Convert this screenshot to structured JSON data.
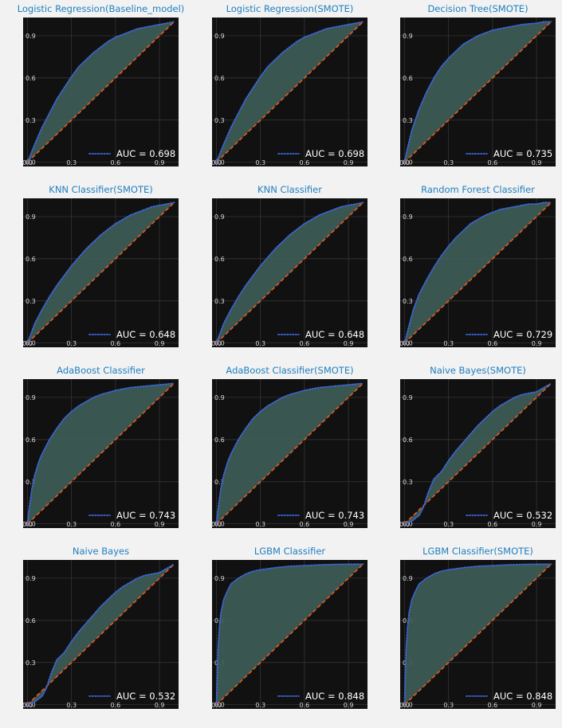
{
  "chart_data": [
    {
      "type": "line",
      "title": "Logistic Regression(Baseline_model)",
      "auc_label": "AUC = 0.698",
      "auc": 0.698,
      "xlim": [
        -0.03,
        1.03
      ],
      "ylim": [
        -0.03,
        1.03
      ],
      "xticks": [
        "0.0",
        "0.3",
        "0.6",
        "0.9"
      ],
      "yticks": [
        "0.0",
        "0.3",
        "0.6",
        "0.9"
      ],
      "roc": {
        "x": [
          0,
          0.05,
          0.1,
          0.15,
          0.2,
          0.25,
          0.3,
          0.35,
          0.4,
          0.45,
          0.5,
          0.55,
          0.6,
          0.65,
          0.7,
          0.75,
          0.8,
          0.85,
          0.9,
          0.95,
          1.0
        ],
        "y": [
          0,
          0.13,
          0.25,
          0.35,
          0.45,
          0.53,
          0.61,
          0.68,
          0.73,
          0.78,
          0.82,
          0.86,
          0.89,
          0.91,
          0.93,
          0.95,
          0.96,
          0.97,
          0.98,
          0.99,
          1.0
        ]
      },
      "diagonal": {
        "x": [
          0,
          1
        ],
        "y": [
          0,
          1
        ]
      },
      "legend": "lower right",
      "grid": true
    },
    {
      "type": "line",
      "title": "Logistic Regression(SMOTE)",
      "auc_label": "AUC = 0.698",
      "auc": 0.698,
      "xlim": [
        -0.03,
        1.03
      ],
      "ylim": [
        -0.03,
        1.03
      ],
      "xticks": [
        "0.0",
        "0.3",
        "0.6",
        "0.9"
      ],
      "yticks": [
        "0.0",
        "0.3",
        "0.6",
        "0.9"
      ],
      "roc": {
        "x": [
          0,
          0.05,
          0.1,
          0.15,
          0.2,
          0.25,
          0.3,
          0.35,
          0.4,
          0.45,
          0.5,
          0.55,
          0.6,
          0.65,
          0.7,
          0.75,
          0.8,
          0.85,
          0.9,
          0.95,
          1.0
        ],
        "y": [
          0,
          0.13,
          0.25,
          0.35,
          0.45,
          0.53,
          0.61,
          0.68,
          0.73,
          0.78,
          0.82,
          0.86,
          0.89,
          0.91,
          0.93,
          0.95,
          0.96,
          0.97,
          0.98,
          0.99,
          1.0
        ]
      },
      "diagonal": {
        "x": [
          0,
          1
        ],
        "y": [
          0,
          1
        ]
      },
      "legend": "lower right",
      "grid": true
    },
    {
      "type": "line",
      "title": "Decision Tree(SMOTE)",
      "auc_label": "AUC = 0.735",
      "auc": 0.735,
      "xlim": [
        -0.03,
        1.03
      ],
      "ylim": [
        -0.03,
        1.03
      ],
      "xticks": [
        "0.0",
        "0.3",
        "0.6",
        "0.9"
      ],
      "yticks": [
        "0.0",
        "0.3",
        "0.6",
        "0.9"
      ],
      "roc": {
        "x": [
          0,
          0.02,
          0.05,
          0.1,
          0.15,
          0.2,
          0.25,
          0.3,
          0.35,
          0.4,
          0.45,
          0.5,
          0.55,
          0.6,
          0.65,
          0.7,
          0.75,
          0.8,
          0.85,
          0.9,
          0.95,
          1.0
        ],
        "y": [
          0,
          0.1,
          0.23,
          0.38,
          0.5,
          0.6,
          0.68,
          0.74,
          0.79,
          0.84,
          0.87,
          0.9,
          0.92,
          0.94,
          0.95,
          0.96,
          0.97,
          0.98,
          0.985,
          0.99,
          1.0,
          1.0
        ]
      },
      "diagonal": {
        "x": [
          0,
          1
        ],
        "y": [
          0,
          1
        ]
      },
      "legend": "lower right",
      "grid": true
    },
    {
      "type": "line",
      "title": "KNN Classifier(SMOTE)",
      "auc_label": "AUC = 0.648",
      "auc": 0.648,
      "xlim": [
        -0.03,
        1.03
      ],
      "ylim": [
        -0.03,
        1.03
      ],
      "xticks": [
        "0.0",
        "0.3",
        "0.6",
        "0.9"
      ],
      "yticks": [
        "0.0",
        "0.3",
        "0.6",
        "0.9"
      ],
      "roc": {
        "x": [
          0,
          0.05,
          0.1,
          0.15,
          0.2,
          0.25,
          0.3,
          0.35,
          0.4,
          0.45,
          0.5,
          0.55,
          0.6,
          0.65,
          0.7,
          0.75,
          0.8,
          0.85,
          0.9,
          0.95,
          1.0
        ],
        "y": [
          0,
          0.14,
          0.24,
          0.33,
          0.41,
          0.48,
          0.55,
          0.61,
          0.67,
          0.72,
          0.77,
          0.81,
          0.85,
          0.88,
          0.91,
          0.93,
          0.95,
          0.97,
          0.98,
          0.99,
          1.0
        ]
      },
      "diagonal": {
        "x": [
          0,
          1
        ],
        "y": [
          0,
          1
        ]
      },
      "legend": "lower right",
      "grid": true
    },
    {
      "type": "line",
      "title": "KNN Classifier",
      "auc_label": "AUC = 0.648",
      "auc": 0.648,
      "xlim": [
        -0.03,
        1.03
      ],
      "ylim": [
        -0.03,
        1.03
      ],
      "xticks": [
        "0.0",
        "0.3",
        "0.6",
        "0.9"
      ],
      "yticks": [
        "0.0",
        "0.3",
        "0.6",
        "0.9"
      ],
      "roc": {
        "x": [
          0,
          0.05,
          0.1,
          0.15,
          0.2,
          0.25,
          0.3,
          0.35,
          0.4,
          0.45,
          0.5,
          0.55,
          0.6,
          0.65,
          0.7,
          0.75,
          0.8,
          0.85,
          0.9,
          0.95,
          1.0
        ],
        "y": [
          0,
          0.14,
          0.24,
          0.33,
          0.41,
          0.48,
          0.55,
          0.61,
          0.67,
          0.72,
          0.77,
          0.81,
          0.85,
          0.88,
          0.91,
          0.93,
          0.95,
          0.97,
          0.98,
          0.99,
          1.0
        ]
      },
      "diagonal": {
        "x": [
          0,
          1
        ],
        "y": [
          0,
          1
        ]
      },
      "legend": "lower right",
      "grid": true
    },
    {
      "type": "line",
      "title": "Random Forest Classifier",
      "auc_label": "AUC = 0.729",
      "auc": 0.729,
      "xlim": [
        -0.03,
        1.03
      ],
      "ylim": [
        -0.03,
        1.03
      ],
      "xticks": [
        "0.0",
        "0.3",
        "0.6",
        "0.9"
      ],
      "yticks": [
        "0.0",
        "0.3",
        "0.6",
        "0.9"
      ],
      "roc": {
        "x": [
          0,
          0.03,
          0.06,
          0.1,
          0.15,
          0.2,
          0.25,
          0.3,
          0.35,
          0.4,
          0.45,
          0.5,
          0.55,
          0.6,
          0.65,
          0.7,
          0.75,
          0.8,
          0.85,
          0.9,
          0.95,
          1.0
        ],
        "y": [
          0,
          0.12,
          0.24,
          0.35,
          0.45,
          0.54,
          0.62,
          0.69,
          0.75,
          0.8,
          0.85,
          0.88,
          0.91,
          0.93,
          0.95,
          0.96,
          0.97,
          0.98,
          0.99,
          0.99,
          1.0,
          1.0
        ]
      },
      "diagonal": {
        "x": [
          0,
          1
        ],
        "y": [
          0,
          1
        ]
      },
      "legend": "lower right",
      "grid": true
    },
    {
      "type": "line",
      "title": "AdaBoost Classifier",
      "auc_label": "AUC = 0.743",
      "auc": 0.743,
      "xlim": [
        -0.03,
        1.03
      ],
      "ylim": [
        -0.03,
        1.03
      ],
      "xticks": [
        "0.0",
        "0.3",
        "0.6",
        "0.9"
      ],
      "yticks": [
        "0.0",
        "0.3",
        "0.6",
        "0.9"
      ],
      "roc": {
        "x": [
          0,
          0.01,
          0.03,
          0.05,
          0.08,
          0.1,
          0.15,
          0.2,
          0.25,
          0.3,
          0.35,
          0.4,
          0.45,
          0.5,
          0.6,
          0.7,
          0.8,
          0.9,
          1.0
        ],
        "y": [
          0,
          0.1,
          0.25,
          0.35,
          0.45,
          0.5,
          0.6,
          0.68,
          0.75,
          0.8,
          0.84,
          0.87,
          0.9,
          0.92,
          0.95,
          0.97,
          0.98,
          0.99,
          1.0
        ]
      },
      "diagonal": {
        "x": [
          0,
          1
        ],
        "y": [
          0,
          1
        ]
      },
      "legend": "lower right",
      "grid": true
    },
    {
      "type": "line",
      "title": "AdaBoost Classifier(SMOTE)",
      "auc_label": "AUC = 0.743",
      "auc": 0.743,
      "xlim": [
        -0.03,
        1.03
      ],
      "ylim": [
        -0.03,
        1.03
      ],
      "xticks": [
        "0.0",
        "0.3",
        "0.6",
        "0.9"
      ],
      "yticks": [
        "0.0",
        "0.3",
        "0.6",
        "0.9"
      ],
      "roc": {
        "x": [
          0,
          0.01,
          0.03,
          0.05,
          0.08,
          0.1,
          0.15,
          0.2,
          0.25,
          0.3,
          0.35,
          0.4,
          0.45,
          0.5,
          0.6,
          0.7,
          0.8,
          0.9,
          1.0
        ],
        "y": [
          0,
          0.1,
          0.25,
          0.35,
          0.45,
          0.5,
          0.6,
          0.68,
          0.75,
          0.8,
          0.84,
          0.87,
          0.9,
          0.92,
          0.95,
          0.97,
          0.98,
          0.99,
          1.0
        ]
      },
      "diagonal": {
        "x": [
          0,
          1
        ],
        "y": [
          0,
          1
        ]
      },
      "legend": "lower right",
      "grid": true
    },
    {
      "type": "line",
      "title": "Naive Bayes(SMOTE)",
      "auc_label": "AUC = 0.532",
      "auc": 0.532,
      "xlim": [
        -0.03,
        1.03
      ],
      "ylim": [
        -0.03,
        1.03
      ],
      "xticks": [
        "0.0",
        "0.3",
        "0.6",
        "0.9"
      ],
      "yticks": [
        "0.0",
        "0.3",
        "0.6",
        "0.9"
      ],
      "roc": {
        "x": [
          0,
          0.05,
          0.1,
          0.13,
          0.16,
          0.2,
          0.25,
          0.3,
          0.35,
          0.4,
          0.45,
          0.5,
          0.55,
          0.6,
          0.65,
          0.7,
          0.75,
          0.8,
          0.85,
          0.9,
          0.95,
          1.0
        ],
        "y": [
          0,
          0.02,
          0.06,
          0.12,
          0.22,
          0.32,
          0.37,
          0.45,
          0.52,
          0.58,
          0.64,
          0.7,
          0.75,
          0.8,
          0.84,
          0.87,
          0.9,
          0.92,
          0.93,
          0.94,
          0.97,
          1.0
        ]
      },
      "diagonal": {
        "x": [
          0,
          1
        ],
        "y": [
          0,
          1
        ]
      },
      "legend": "lower right",
      "grid": true
    },
    {
      "type": "line",
      "title": "Naive Bayes",
      "auc_label": "AUC = 0.532",
      "auc": 0.532,
      "xlim": [
        -0.03,
        1.03
      ],
      "ylim": [
        -0.03,
        1.03
      ],
      "xticks": [
        "0.0",
        "0.3",
        "0.6",
        "0.9"
      ],
      "yticks": [
        "0.0",
        "0.3",
        "0.6",
        "0.9"
      ],
      "roc": {
        "x": [
          0,
          0.05,
          0.1,
          0.13,
          0.16,
          0.2,
          0.25,
          0.3,
          0.35,
          0.4,
          0.45,
          0.5,
          0.55,
          0.6,
          0.65,
          0.7,
          0.75,
          0.8,
          0.85,
          0.9,
          0.95,
          1.0
        ],
        "y": [
          0,
          0.02,
          0.06,
          0.12,
          0.22,
          0.32,
          0.37,
          0.45,
          0.52,
          0.58,
          0.64,
          0.7,
          0.75,
          0.8,
          0.84,
          0.87,
          0.9,
          0.92,
          0.93,
          0.94,
          0.97,
          1.0
        ]
      },
      "diagonal": {
        "x": [
          0,
          1
        ],
        "y": [
          0,
          1
        ]
      },
      "legend": "lower right",
      "grid": true
    },
    {
      "type": "line",
      "title": "LGBM Classifier",
      "auc_label": "AUC = 0.848",
      "auc": 0.848,
      "xlim": [
        -0.03,
        1.03
      ],
      "ylim": [
        -0.03,
        1.03
      ],
      "xticks": [
        "0.0",
        "0.3",
        "0.6",
        "0.9"
      ],
      "yticks": [
        "0.0",
        "0.3",
        "0.6",
        "0.9"
      ],
      "roc": {
        "x": [
          0,
          0.005,
          0.01,
          0.02,
          0.03,
          0.05,
          0.08,
          0.1,
          0.15,
          0.2,
          0.25,
          0.3,
          0.4,
          0.5,
          0.6,
          0.7,
          0.8,
          0.9,
          1.0
        ],
        "y": [
          0,
          0.2,
          0.4,
          0.55,
          0.65,
          0.75,
          0.82,
          0.86,
          0.9,
          0.93,
          0.95,
          0.96,
          0.975,
          0.985,
          0.99,
          0.995,
          0.998,
          1.0,
          1.0
        ]
      },
      "diagonal": {
        "x": [
          0,
          1
        ],
        "y": [
          0,
          1
        ]
      },
      "legend": "lower right",
      "grid": true
    },
    {
      "type": "line",
      "title": "LGBM Classifier(SMOTE)",
      "auc_label": "AUC = 0.848",
      "auc": 0.848,
      "xlim": [
        -0.03,
        1.03
      ],
      "ylim": [
        -0.03,
        1.03
      ],
      "xticks": [
        "0.0",
        "0.3",
        "0.6",
        "0.9"
      ],
      "yticks": [
        "0.0",
        "0.3",
        "0.6",
        "0.9"
      ],
      "roc": {
        "x": [
          0,
          0.005,
          0.01,
          0.02,
          0.03,
          0.05,
          0.08,
          0.1,
          0.15,
          0.2,
          0.25,
          0.3,
          0.4,
          0.5,
          0.6,
          0.7,
          0.8,
          0.9,
          1.0
        ],
        "y": [
          0,
          0.2,
          0.4,
          0.55,
          0.65,
          0.75,
          0.82,
          0.86,
          0.9,
          0.93,
          0.95,
          0.96,
          0.975,
          0.985,
          0.99,
          0.995,
          0.998,
          1.0,
          1.0
        ]
      },
      "diagonal": {
        "x": [
          0,
          1
        ],
        "y": [
          0,
          1
        ]
      },
      "legend": "lower right",
      "grid": true
    }
  ],
  "colors": {
    "figure_bg": "#f2f2f2",
    "axes_bg": "#111111",
    "grid": "#3a3a3a",
    "roc_line": "#3b67d9",
    "fill": "#3d5b55",
    "diagonal": "#e8581f",
    "title": "#1f7fc0",
    "tick": "#d8d8d8",
    "legend_text": "#ffffff"
  }
}
